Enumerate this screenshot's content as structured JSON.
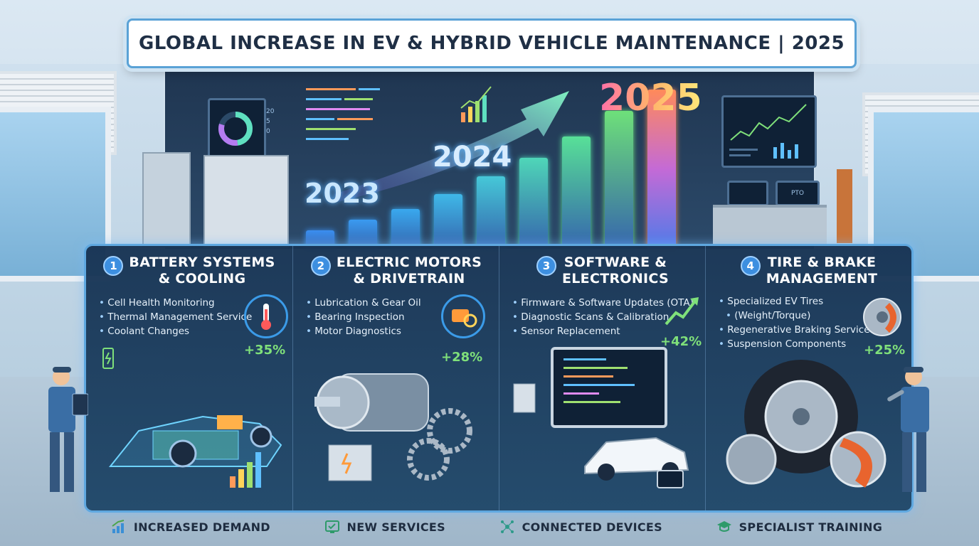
{
  "title": "GLOBAL INCREASE IN EV & HYBRID VEHICLE MAINTENANCE | 2025",
  "years": [
    "2023",
    "2024",
    "2025"
  ],
  "growth_bars": [
    0.1,
    0.16,
    0.22,
    0.3,
    0.4,
    0.5,
    0.62,
    0.76,
    0.88
  ],
  "monitor": {
    "readouts": [
      "20",
      "5",
      "0"
    ],
    "screen_label": "PTO"
  },
  "categories": [
    {
      "number": "1",
      "title_line1": "BATTERY SYSTEMS",
      "title_line2": "& COOLING",
      "items": [
        "Cell Health Monitoring",
        "Thermal Management Service",
        "Coolant Changes"
      ],
      "increase": "+35%",
      "icon": "thermometer-icon"
    },
    {
      "number": "2",
      "title_line1": "ELECTRIC MOTORS",
      "title_line2": "& DRIVETRAIN",
      "items": [
        "Lubrication & Gear Oil",
        "Bearing Inspection",
        "Motor Diagnostics"
      ],
      "increase": "+28%",
      "icon": "motor-gear-icon"
    },
    {
      "number": "3",
      "title_line1": "SOFTWARE &",
      "title_line2": "ELECTRONICS",
      "items": [
        "Firmware & Software Updates (OTA)",
        "Diagnostic Scans & Calibration",
        "Sensor Replacement"
      ],
      "increase": "+42%",
      "icon": "trend-up-icon"
    },
    {
      "number": "4",
      "title_line1": "TIRE & BRAKE",
      "title_line2": "MANAGEMENT",
      "items": [
        "Specialized EV Tires",
        "(Weight/Torque)",
        "Regenerative Braking Service",
        "Suspension Components"
      ],
      "increase": "+25%",
      "icon": "brake-disc-icon"
    }
  ],
  "footer": [
    {
      "label": "INCREASED DEMAND",
      "icon": "bar-chart-icon"
    },
    {
      "label": "NEW SERVICES",
      "icon": "service-screen-icon"
    },
    {
      "label": "CONNECTED DEVICES",
      "icon": "network-icon"
    },
    {
      "label": "SPECIALIST TRAINING",
      "icon": "graduation-cap-icon"
    }
  ],
  "colors": {
    "accent": "#3d8fe0",
    "increase": "#7fe07a",
    "panel": "#1e4668"
  }
}
